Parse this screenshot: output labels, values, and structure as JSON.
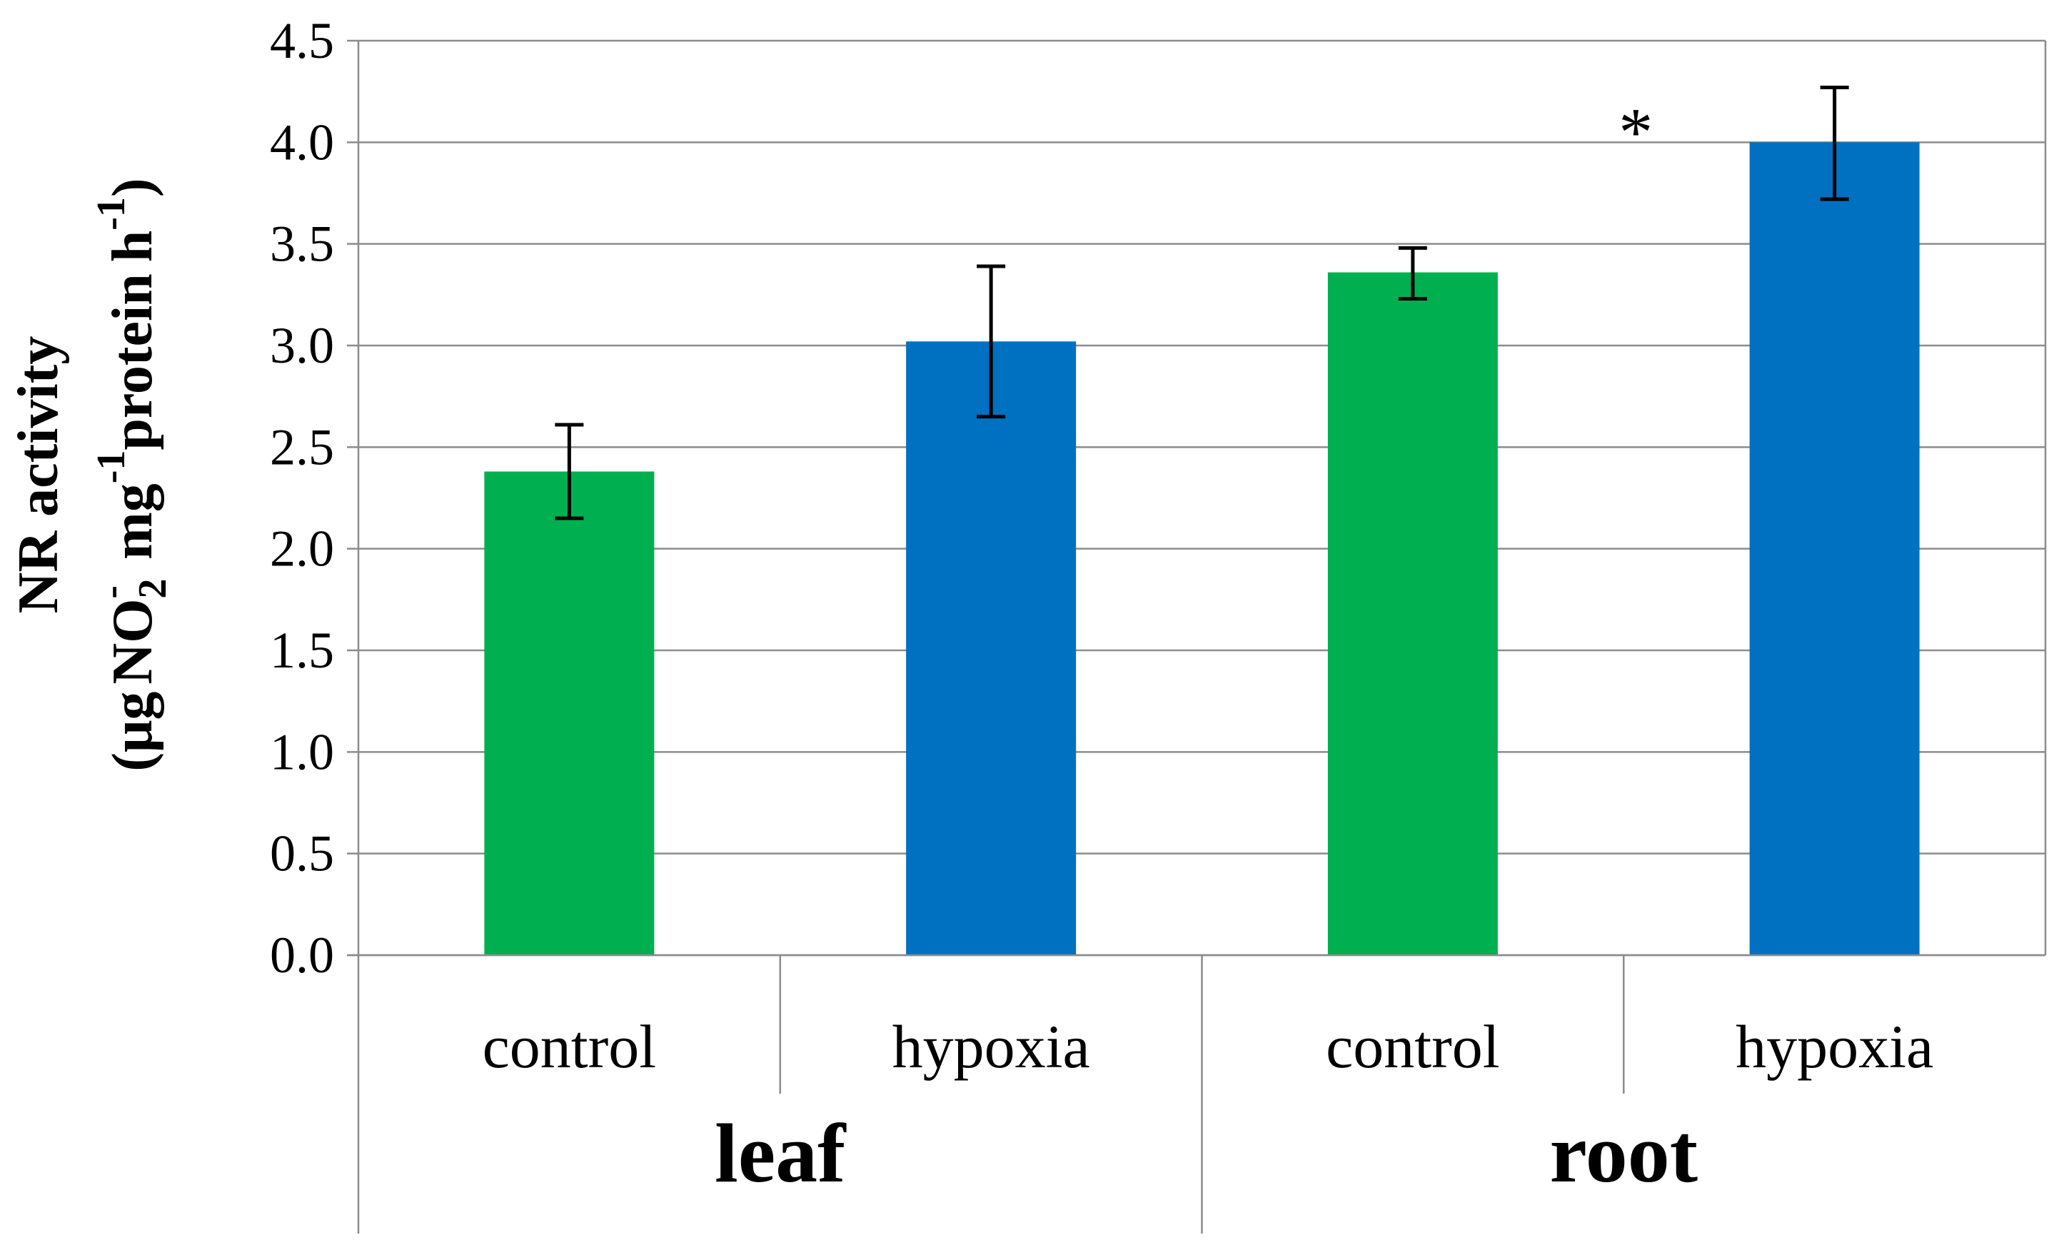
{
  "chart_data": {
    "type": "bar",
    "title": "",
    "ylabel_line1": "NR activity",
    "ylabel_line2": {
      "open": "(",
      "unit_mu": "μg",
      "no": "NO",
      "no_sub": "2",
      "no_sup": "-",
      "mg": "mg",
      "mg_sup": "-1",
      "protein": "protein",
      "h": "h",
      "h_sup": "-1",
      "close": ")"
    },
    "ylim": [
      0,
      4.5
    ],
    "yticks": [
      "0.0",
      "0.5",
      "1.0",
      "1.5",
      "2.0",
      "2.5",
      "3.0",
      "3.5",
      "4.0",
      "4.5"
    ],
    "grid": true,
    "groups": [
      {
        "name": "leaf",
        "categories": [
          "control",
          "hypoxia"
        ]
      },
      {
        "name": "root",
        "categories": [
          "control",
          "hypoxia"
        ]
      }
    ],
    "bars": [
      {
        "group": "leaf",
        "category": "control",
        "value": 2.38,
        "err_low": 2.15,
        "err_high": 2.61,
        "color": "#00b050",
        "annotation": ""
      },
      {
        "group": "leaf",
        "category": "hypoxia",
        "value": 3.02,
        "err_low": 2.65,
        "err_high": 3.39,
        "color": "#0070c0",
        "annotation": ""
      },
      {
        "group": "root",
        "category": "control",
        "value": 3.36,
        "err_low": 3.23,
        "err_high": 3.48,
        "color": "#00b050",
        "annotation": ""
      },
      {
        "group": "root",
        "category": "hypoxia",
        "value": 4.0,
        "err_low": 3.72,
        "err_high": 4.27,
        "color": "#0070c0",
        "annotation": "*"
      }
    ]
  }
}
